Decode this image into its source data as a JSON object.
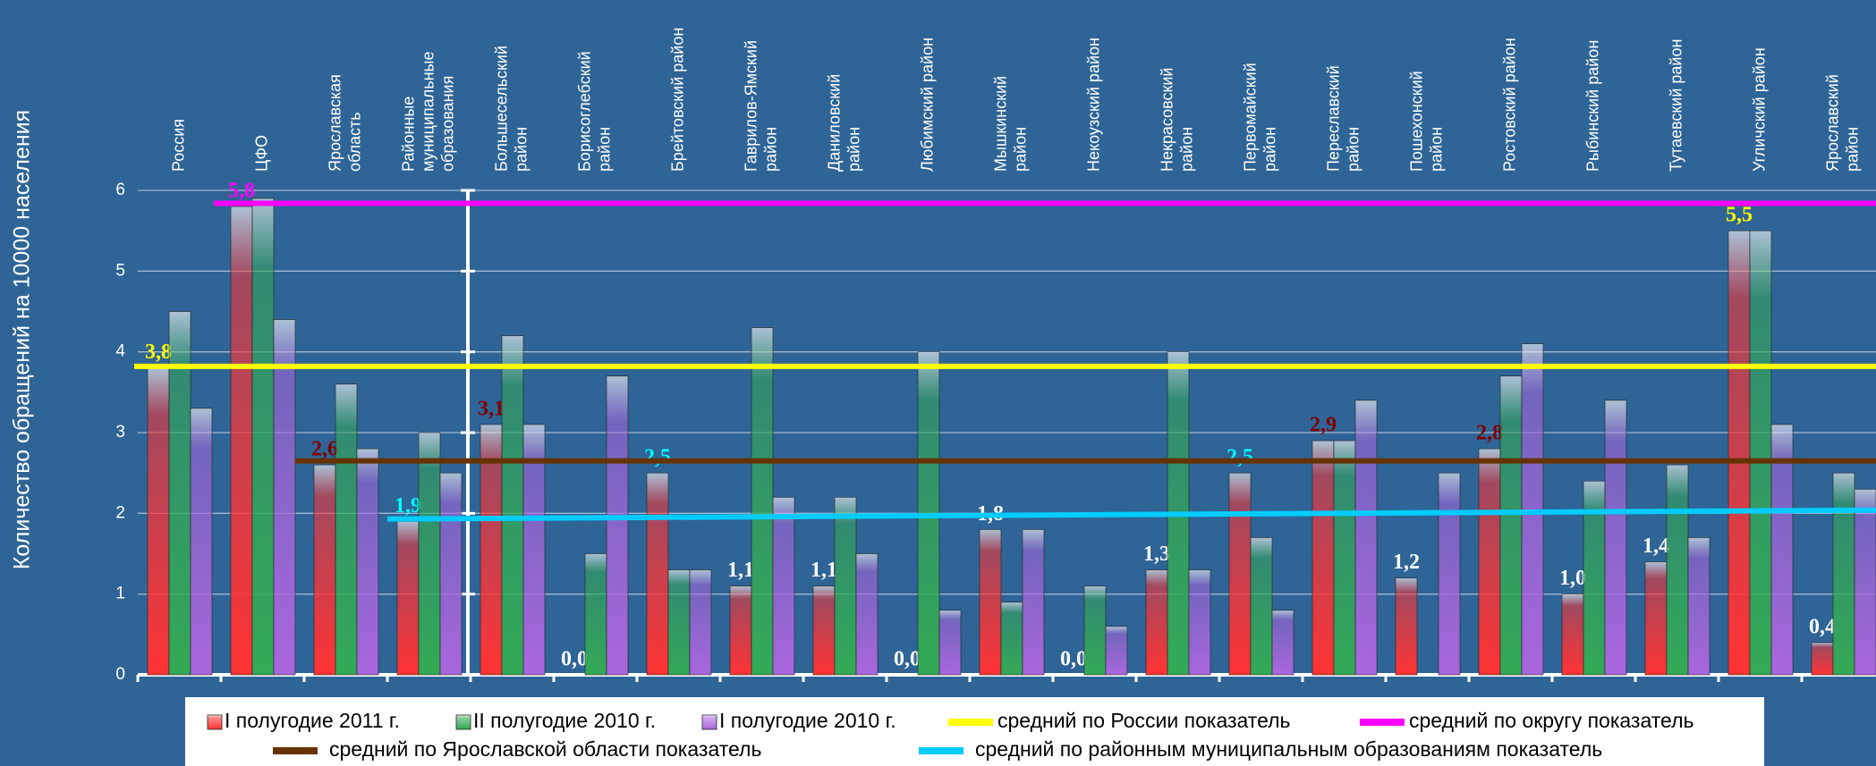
{
  "chart_data": {
    "type": "bar",
    "y_label": "Количество обращений на 10000 населения",
    "categories": [
      "Россия",
      "ЦФО",
      "Ярославская\nобласть",
      "Районные\nмуниципальные\nобразования",
      "Большесельский\nрайон",
      "Борисоглебский\nрайон",
      "Брейтовский район",
      "Гаврилов-Ямский\nрайон",
      "Даниловский\nрайон",
      "Любимский район",
      "Мышкинский\nрайон",
      "Некоузский район",
      "Некрасовский\nрайон",
      "Первомайский\nрайон",
      "Переславский\nрайон",
      "Пошехонский\nрайон",
      "Ростовский район",
      "Рыбинский район",
      "Тутаевский район",
      "Угличский район",
      "Ярославский\nрайон"
    ],
    "series": [
      {
        "name": "I полугодие 2011 г.",
        "color": "#ff3333",
        "values": [
          3.8,
          5.8,
          2.6,
          1.9,
          3.1,
          0.0,
          2.5,
          1.1,
          1.1,
          0.0,
          1.8,
          0.0,
          1.3,
          2.5,
          2.9,
          1.2,
          2.8,
          1.0,
          1.4,
          5.5,
          0.4
        ],
        "value_labels": [
          "3,8",
          "5,8",
          "2,6",
          "1,9",
          "3,1",
          "0,0",
          "2,5",
          "1,1",
          "1,1",
          "0,0",
          "1,8",
          "0,0",
          "1,3",
          "2,5",
          "2,9",
          "1,2",
          "2,8",
          "1,0",
          "1,4",
          "5,5",
          "0,4"
        ],
        "label_colors": [
          "#ffff00",
          "#ff00ff",
          "#800000",
          "#00ffff",
          "#800000",
          "#ffffff",
          "#00ffff",
          "#ffffff",
          "#ffffff",
          "#ffffff",
          "#ffffff",
          "#ffffff",
          "#ffffff",
          "#00ffff",
          "#800000",
          "#ffffff",
          "#800000",
          "#ffffff",
          "#ffffff",
          "#ffff00",
          "#ffffff"
        ]
      },
      {
        "name": "II полугодие 2010 г.",
        "color": "#33aa55",
        "values": [
          4.5,
          5.9,
          3.6,
          3.0,
          4.2,
          1.5,
          1.3,
          4.3,
          2.2,
          4.0,
          0.9,
          1.1,
          4.0,
          1.7,
          2.9,
          null,
          3.7,
          2.4,
          2.6,
          5.5,
          2.5
        ]
      },
      {
        "name": "I полугодие 2010 г.",
        "color": "#aa66dd",
        "values": [
          3.3,
          4.4,
          2.8,
          2.5,
          3.1,
          3.7,
          1.3,
          2.2,
          1.5,
          0.8,
          1.8,
          0.6,
          1.3,
          0.8,
          3.4,
          2.5,
          4.1,
          3.4,
          1.7,
          3.1,
          2.3
        ]
      }
    ],
    "reference_lines": [
      {
        "name": "средний по России показатель",
        "color": "#ffff00",
        "values": [
          3.82,
          3.82
        ]
      },
      {
        "name": "средний по округу показатель",
        "color": "#ff00ff",
        "values": [
          5.84,
          5.84
        ]
      },
      {
        "name": "средний по Ярославской области показатель",
        "color": "#663300",
        "values": [
          2.65,
          2.65
        ]
      },
      {
        "name": "средний по районным муниципальным образованиям показатель",
        "color": "#00ccff",
        "values": [
          1.93,
          2.04
        ]
      }
    ],
    "ylim": [
      0,
      6
    ],
    "yticks": [
      0,
      1,
      2,
      3,
      4,
      5,
      6
    ],
    "grid": true
  }
}
